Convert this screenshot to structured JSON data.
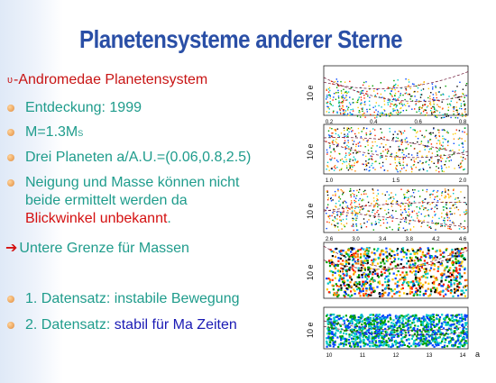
{
  "slide": {
    "title": "Planetensysteme anderer Sterne",
    "subtitle_symbol": "υ",
    "subtitle": "-Andromedae Planetensystem",
    "bullets": [
      {
        "text": "Entdeckung: 1999"
      },
      {
        "text_pre": "M=1.3M",
        "text_sub": "S"
      },
      {
        "text": "Drei Planeten a/A.U.=(0.06,0.8,2.5)"
      },
      {
        "line1": "Neigung und Masse können nicht",
        "line2": "beide ermittelt werden da",
        "line3": "Blickwinkel unbekannt",
        "line3_end": "."
      }
    ],
    "arrow_line": "Untere Grenze für Massen",
    "bullets2": [
      {
        "text": "1. Datensatz: instabile Bewegung"
      },
      {
        "text_pre": "2. Datensatz: ",
        "text_blue": "stabil für Ma Zeiten"
      }
    ]
  },
  "panels": [
    {
      "ylabel": "10 e",
      "xticks": [
        "0.2",
        "0.4",
        "0.6",
        "0.8"
      ]
    },
    {
      "ylabel": "10 e",
      "xticks": [
        "1.0",
        "1.5",
        "2.0"
      ]
    },
    {
      "ylabel": "10 e",
      "xticks": [
        "2.6",
        "3.0",
        "3.4",
        "3.8",
        "4.2",
        "4.6"
      ]
    },
    {
      "ylabel": "10 e",
      "xticks": []
    },
    {
      "ylabel": "10 e",
      "xticks": [
        "10",
        "11",
        "12",
        "13",
        "14"
      ]
    }
  ],
  "axis_corner_label": "a",
  "colors": {
    "title": "#2a4fa6",
    "teal": "#1f9c8c",
    "red": "#d41010",
    "blue": "#1a1ab4"
  }
}
